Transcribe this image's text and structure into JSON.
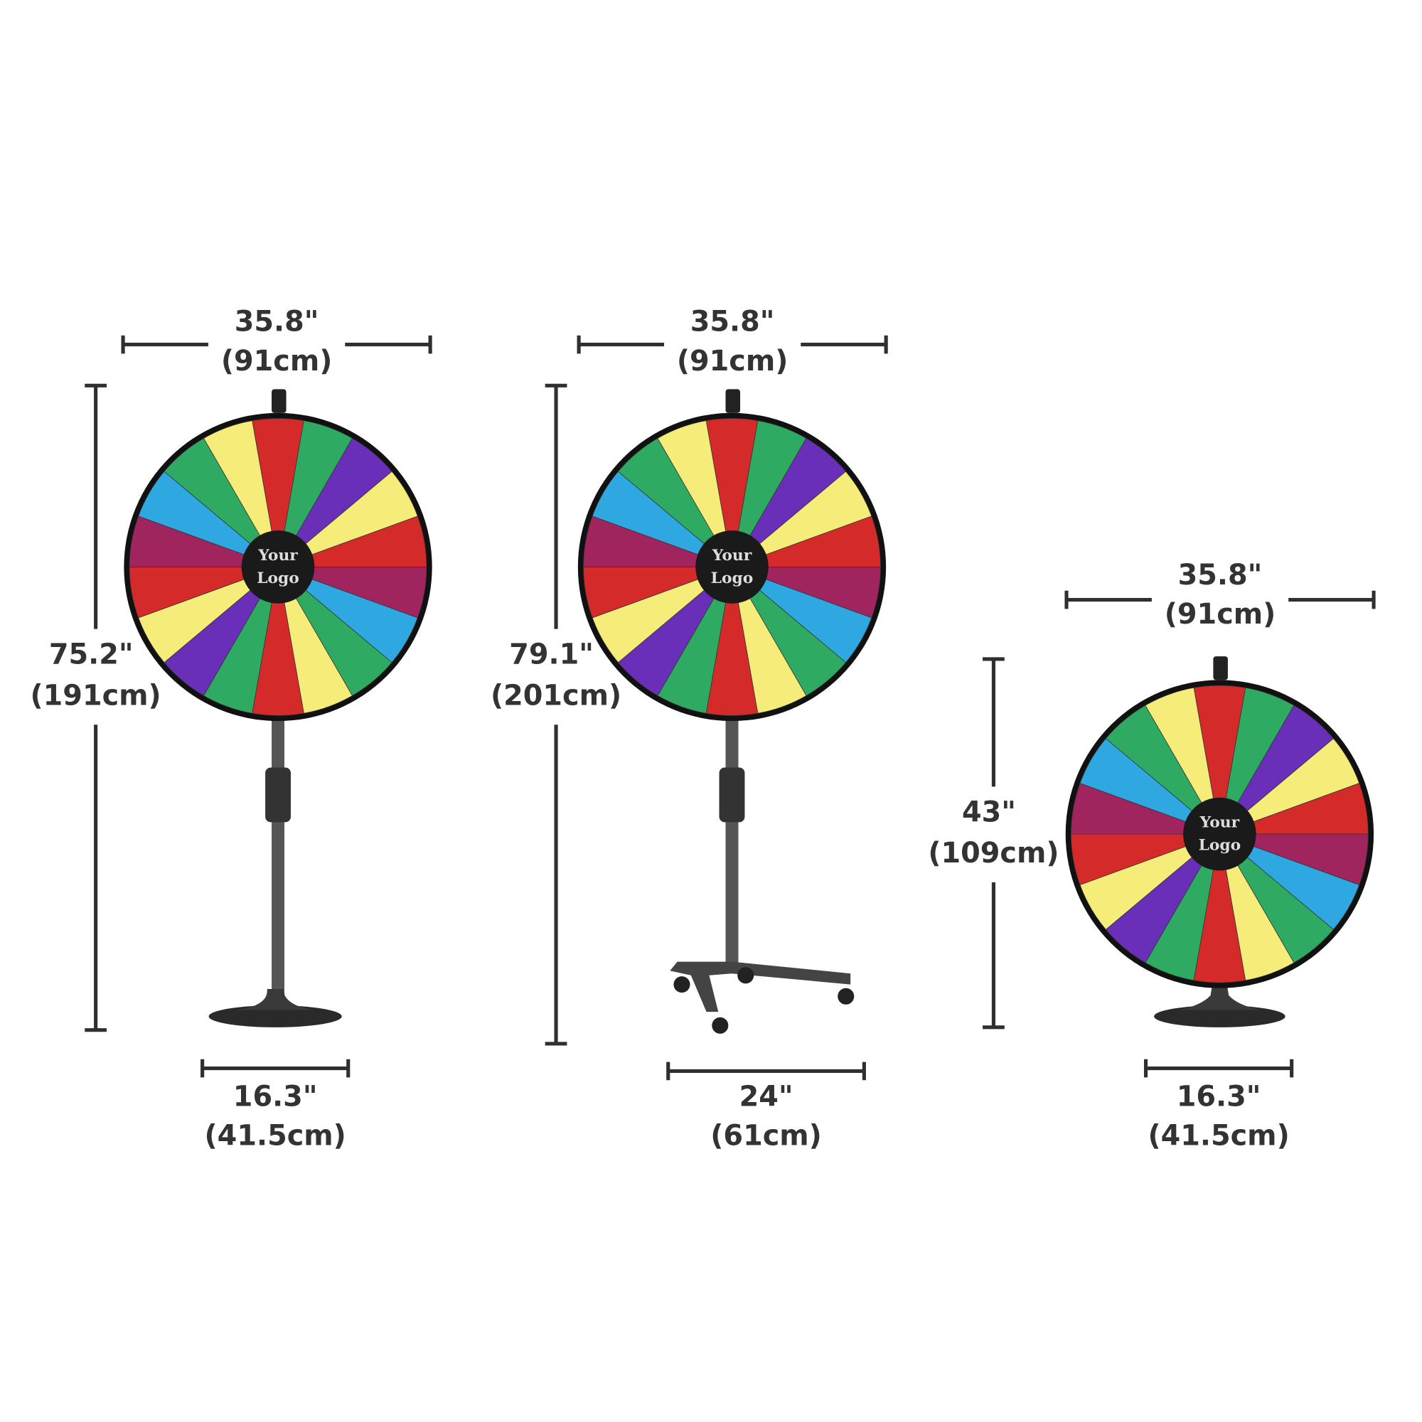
{
  "products": [
    {
      "width": {
        "inches": "35.8\"",
        "cm": "(91cm)"
      },
      "height": {
        "inches": "75.2\"",
        "cm": "(191cm)"
      },
      "base": {
        "inches": "16.3\"",
        "cm": "(41.5cm)"
      },
      "logo": [
        "Your",
        "Logo"
      ]
    },
    {
      "width": {
        "inches": "35.8\"",
        "cm": "(91cm)"
      },
      "height": {
        "inches": "79.1\"",
        "cm": "(201cm)"
      },
      "base": {
        "inches": "24\"",
        "cm": "(61cm)"
      },
      "logo": [
        "Your",
        "Logo"
      ]
    },
    {
      "width": {
        "inches": "35.8\"",
        "cm": "(91cm)"
      },
      "height": {
        "inches": "43\"",
        "cm": "(109cm)"
      },
      "base": {
        "inches": "16.3\"",
        "cm": "(41.5cm)"
      },
      "logo": [
        "Your",
        "Logo"
      ]
    }
  ]
}
